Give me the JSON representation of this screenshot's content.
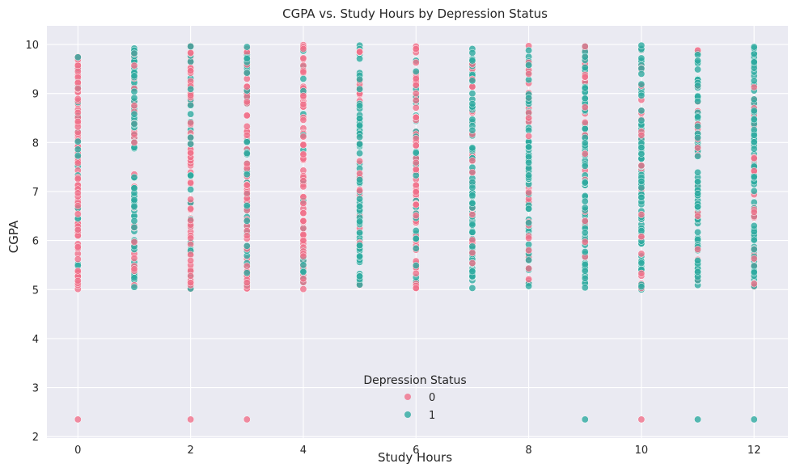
{
  "chart_data": {
    "type": "scatter",
    "title": "CGPA vs. Study Hours by Depression Status",
    "xlabel": "Study Hours",
    "ylabel": "CGPA",
    "xlim": [
      -0.55,
      12.6
    ],
    "ylim": [
      1.97,
      10.38
    ],
    "x_ticks": [
      "0",
      "2",
      "4",
      "6",
      "8",
      "10",
      "12"
    ],
    "y_ticks": [
      "2",
      "3",
      "4",
      "5",
      "6",
      "7",
      "8",
      "9",
      "10"
    ],
    "grid": true,
    "legend_placement": "bottom-center",
    "legend_title": "Depression Status",
    "colors": {
      "background": "#eaeaf2",
      "grid": "#ffffff"
    },
    "series": [
      {
        "name": "0",
        "color": "#f0708a"
      },
      {
        "name": "1",
        "color": "#2eaaa0"
      }
    ],
    "hours": [
      0,
      1,
      2,
      3,
      4,
      5,
      6,
      7,
      8,
      9,
      10,
      11,
      12
    ],
    "cgpa_band": [
      5.0,
      10.0
    ],
    "dominant_series_by_hour": [
      0,
      1,
      0,
      0,
      0,
      1,
      0,
      1,
      1,
      1,
      1,
      1,
      1
    ],
    "outliers": [
      {
        "x": 0,
        "y": 2.35,
        "series": 0
      },
      {
        "x": 2,
        "y": 2.35,
        "series": 0
      },
      {
        "x": 3,
        "y": 2.35,
        "series": 0
      },
      {
        "x": 9,
        "y": 2.35,
        "series": 1
      },
      {
        "x": 10,
        "y": 2.35,
        "series": 0
      },
      {
        "x": 11,
        "y": 2.35,
        "series": 1
      },
      {
        "x": 12,
        "y": 2.35,
        "series": 1
      }
    ]
  }
}
